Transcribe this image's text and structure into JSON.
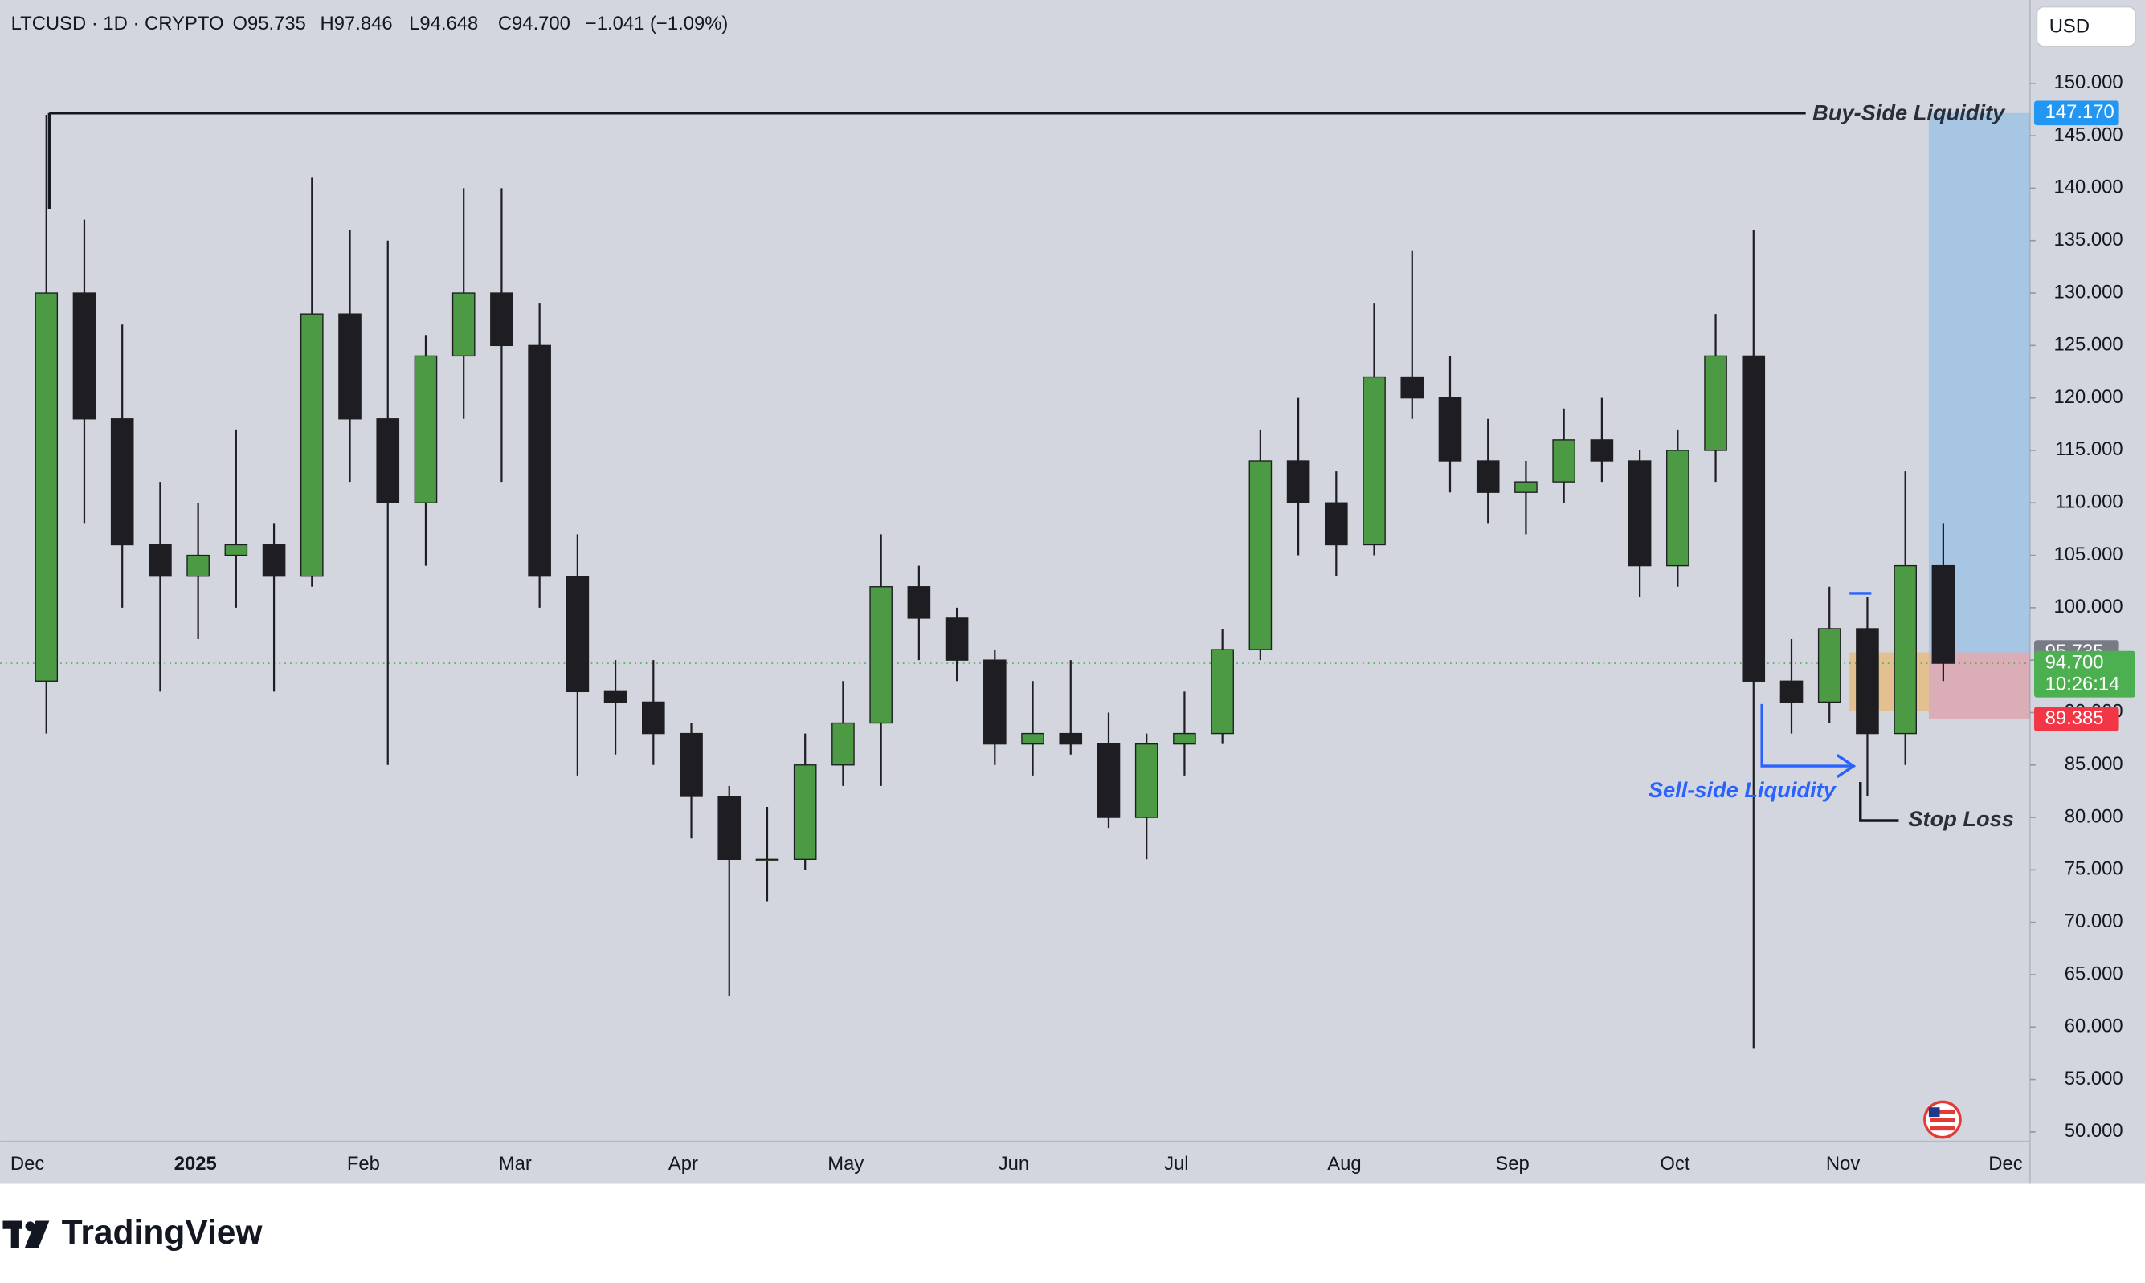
{
  "header": {
    "symbol": "LTCUSD · 1D · CRYPTO",
    "open": "O95.735",
    "high": "H97.846",
    "low": "L94.648",
    "close": "C94.700",
    "change": "−1.041 (−1.09%)"
  },
  "currency": "USD",
  "chart_data": {
    "type": "candlestick",
    "open": [
      93,
      130,
      118,
      106,
      103,
      105,
      106,
      103,
      128,
      118,
      110,
      124,
      130,
      125,
      103,
      92,
      91,
      88,
      82,
      76,
      76,
      85,
      89,
      102,
      99,
      95,
      87,
      88,
      87,
      80,
      87,
      88,
      96,
      114,
      110,
      106,
      122,
      120,
      114,
      111,
      112,
      116,
      114,
      104,
      115,
      124,
      93,
      91,
      98,
      88,
      104
    ],
    "high": [
      147,
      137,
      127,
      112,
      110,
      117,
      108,
      141,
      136,
      135,
      126,
      140,
      140,
      129,
      107,
      95,
      95,
      89,
      83,
      81,
      88,
      93,
      107,
      104,
      100,
      96,
      93,
      95,
      90,
      88,
      92,
      98,
      117,
      120,
      113,
      129,
      134,
      124,
      118,
      114,
      119,
      120,
      115,
      117,
      128,
      136,
      97,
      102,
      101,
      113,
      108
    ],
    "low": [
      88,
      108,
      100,
      92,
      97,
      100,
      92,
      102,
      112,
      85,
      104,
      118,
      112,
      100,
      84,
      86,
      85,
      78,
      63,
      72,
      75,
      83,
      83,
      95,
      93,
      85,
      84,
      86,
      79,
      76,
      84,
      87,
      95,
      105,
      103,
      105,
      118,
      111,
      108,
      107,
      110,
      112,
      101,
      102,
      112,
      58,
      88,
      89,
      82,
      85,
      93
    ],
    "close": [
      130,
      118,
      106,
      103,
      105,
      106,
      103,
      128,
      118,
      110,
      124,
      130,
      125,
      103,
      92,
      91,
      88,
      82,
      76,
      76,
      85,
      89,
      102,
      99,
      95,
      87,
      88,
      87,
      80,
      87,
      88,
      96,
      114,
      110,
      106,
      122,
      120,
      114,
      111,
      112,
      116,
      114,
      104,
      115,
      124,
      93,
      91,
      98,
      88,
      104,
      94.7
    ],
    "up_color": "#4d9a45",
    "down_color": "#1e1e22",
    "ylim": [
      49.09,
      157.95
    ],
    "yticks": [
      {
        "value": 50,
        "label": "50.000"
      },
      {
        "value": 55,
        "label": "55.000"
      },
      {
        "value": 60,
        "label": "60.000"
      },
      {
        "value": 65,
        "label": "65.000"
      },
      {
        "value": 70,
        "label": "70.000"
      },
      {
        "value": 75,
        "label": "75.000"
      },
      {
        "value": 80,
        "label": "80.000"
      },
      {
        "value": 85,
        "label": "85.000"
      },
      {
        "value": 90,
        "label": "90.000"
      },
      {
        "value": 95,
        "label": "95.000"
      },
      {
        "value": 100,
        "label": "100.000"
      },
      {
        "value": 105,
        "label": "105.000"
      },
      {
        "value": 110,
        "label": "110.000"
      },
      {
        "value": 115,
        "label": "115.000"
      },
      {
        "value": 120,
        "label": "120.000"
      },
      {
        "value": 125,
        "label": "125.000"
      },
      {
        "value": 130,
        "label": "130.000"
      },
      {
        "value": 135,
        "label": "135.000"
      },
      {
        "value": 140,
        "label": "140.000"
      },
      {
        "value": 145,
        "label": "145.000"
      },
      {
        "value": 150,
        "label": "150.000"
      }
    ],
    "x_labels": [
      "Dec",
      "2025",
      "Feb",
      "Mar",
      "Apr",
      "May",
      "Jun",
      "Jul",
      "Aug",
      "Sep",
      "Oct",
      "Nov",
      "Dec"
    ],
    "annotations": {
      "buy_side": {
        "text": "Buy-Side Liquidity",
        "value": 147.17,
        "label": "147.170"
      },
      "sell_side": {
        "text": "Sell-side Liquidity",
        "value": 84.9
      },
      "stop_loss": {
        "text": "Stop Loss",
        "value": 79.7
      },
      "position": {
        "entry": 95.735,
        "entry_label": "95.735",
        "stop": 89.385,
        "stop_label": "89.385",
        "target": 147.17
      },
      "last_price": {
        "value": 94.7,
        "label": "94.700",
        "countdown": "10:26:14"
      }
    }
  },
  "footer": {
    "brand": "TradingView"
  }
}
